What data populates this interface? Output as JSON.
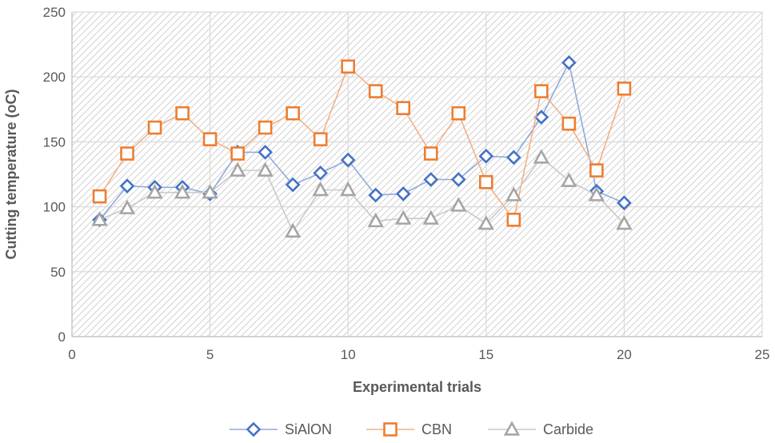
{
  "chart_data": {
    "type": "scatter",
    "xlabel": "Experimental trials",
    "ylabel": "Cutting temperature (oC)",
    "xlim": [
      0,
      25
    ],
    "ylim": [
      0,
      250
    ],
    "x_ticks": [
      0,
      5,
      10,
      15,
      20,
      25
    ],
    "y_ticks": [
      0,
      50,
      100,
      150,
      200,
      250
    ],
    "grid": true,
    "legend_position": "bottom",
    "x": [
      1,
      2,
      3,
      4,
      5,
      6,
      7,
      8,
      9,
      10,
      11,
      12,
      13,
      14,
      15,
      16,
      17,
      18,
      19,
      20
    ],
    "series": [
      {
        "name": "SiAlON",
        "color": "#4472C4",
        "line_color": "#8FAADC",
        "marker": "diamond",
        "values": [
          90,
          116,
          115,
          115,
          110,
          142,
          142,
          117,
          126,
          136,
          109,
          110,
          121,
          121,
          139,
          138,
          169,
          211,
          112,
          103
        ]
      },
      {
        "name": "CBN",
        "color": "#ED7D31",
        "line_color": "#F4B183",
        "marker": "square",
        "values": [
          108,
          141,
          161,
          172,
          152,
          141,
          161,
          172,
          152,
          208,
          189,
          176,
          141,
          172,
          119,
          90,
          189,
          164,
          128,
          191
        ]
      },
      {
        "name": "Carbide",
        "color": "#A5A5A5",
        "line_color": "#C9C9C9",
        "marker": "triangle",
        "values": [
          90,
          99,
          111,
          111,
          111,
          128,
          128,
          81,
          113,
          113,
          89,
          91,
          91,
          101,
          87,
          109,
          138,
          120,
          109,
          87
        ]
      }
    ]
  }
}
